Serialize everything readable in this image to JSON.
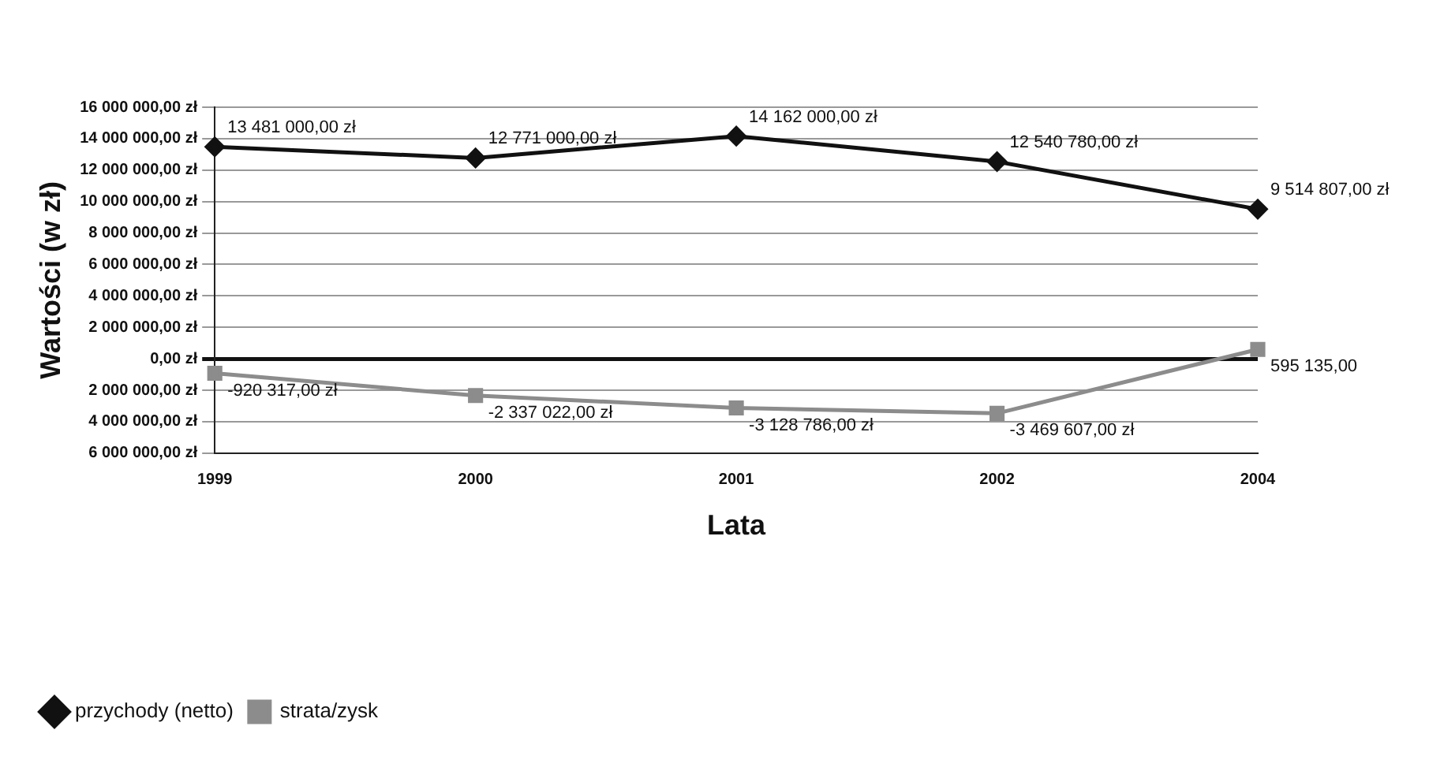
{
  "chart_data": {
    "type": "line",
    "xlabel": "Lata",
    "ylabel": "Wartości (w zł)",
    "categories": [
      "1999",
      "2000",
      "2001",
      "2002",
      "2004"
    ],
    "series": [
      {
        "name": "przychody (netto)",
        "color": "#111111",
        "marker": "diamond",
        "values": [
          13481000,
          12771000,
          14162000,
          12540780,
          9514807
        ],
        "value_labels": [
          "13 481 000,00 zł",
          "12 771 000,00 zł",
          "14 162 000,00 zł",
          "12 540 780,00 zł",
          "9 514 807,00 zł"
        ]
      },
      {
        "name": "strata/zysk",
        "color": "#8c8c8c",
        "marker": "square",
        "values": [
          -920317,
          -2337022,
          -3128786,
          -3469607,
          595135
        ],
        "value_labels": [
          "-920 317,00 zł",
          "-2 337 022,00 zł",
          "-3 128 786,00 zł",
          "-3 469 607,00 zł",
          "595 135,00"
        ]
      }
    ],
    "ylim": [
      -6000000,
      16000000
    ],
    "yticks": [
      {
        "value": -6000000,
        "label": "6 000 000,00 zł"
      },
      {
        "value": -4000000,
        "label": "4 000 000,00 zł"
      },
      {
        "value": -2000000,
        "label": "2 000 000,00 zł"
      },
      {
        "value": 0,
        "label": "0,00 zł"
      },
      {
        "value": 2000000,
        "label": "2 000 000,00 zł"
      },
      {
        "value": 4000000,
        "label": "4 000 000,00 zł"
      },
      {
        "value": 6000000,
        "label": "6 000 000,00 zł"
      },
      {
        "value": 8000000,
        "label": "8 000 000,00 zł"
      },
      {
        "value": 10000000,
        "label": "10 000 000,00 zł"
      },
      {
        "value": 12000000,
        "label": "12 000 000,00 zł"
      },
      {
        "value": 14000000,
        "label": "14 000 000,00 zł"
      },
      {
        "value": 16000000,
        "label": "16 000 000,00 zł"
      }
    ],
    "grid": "y",
    "legend": "bottom left",
    "line_style": "solid"
  }
}
